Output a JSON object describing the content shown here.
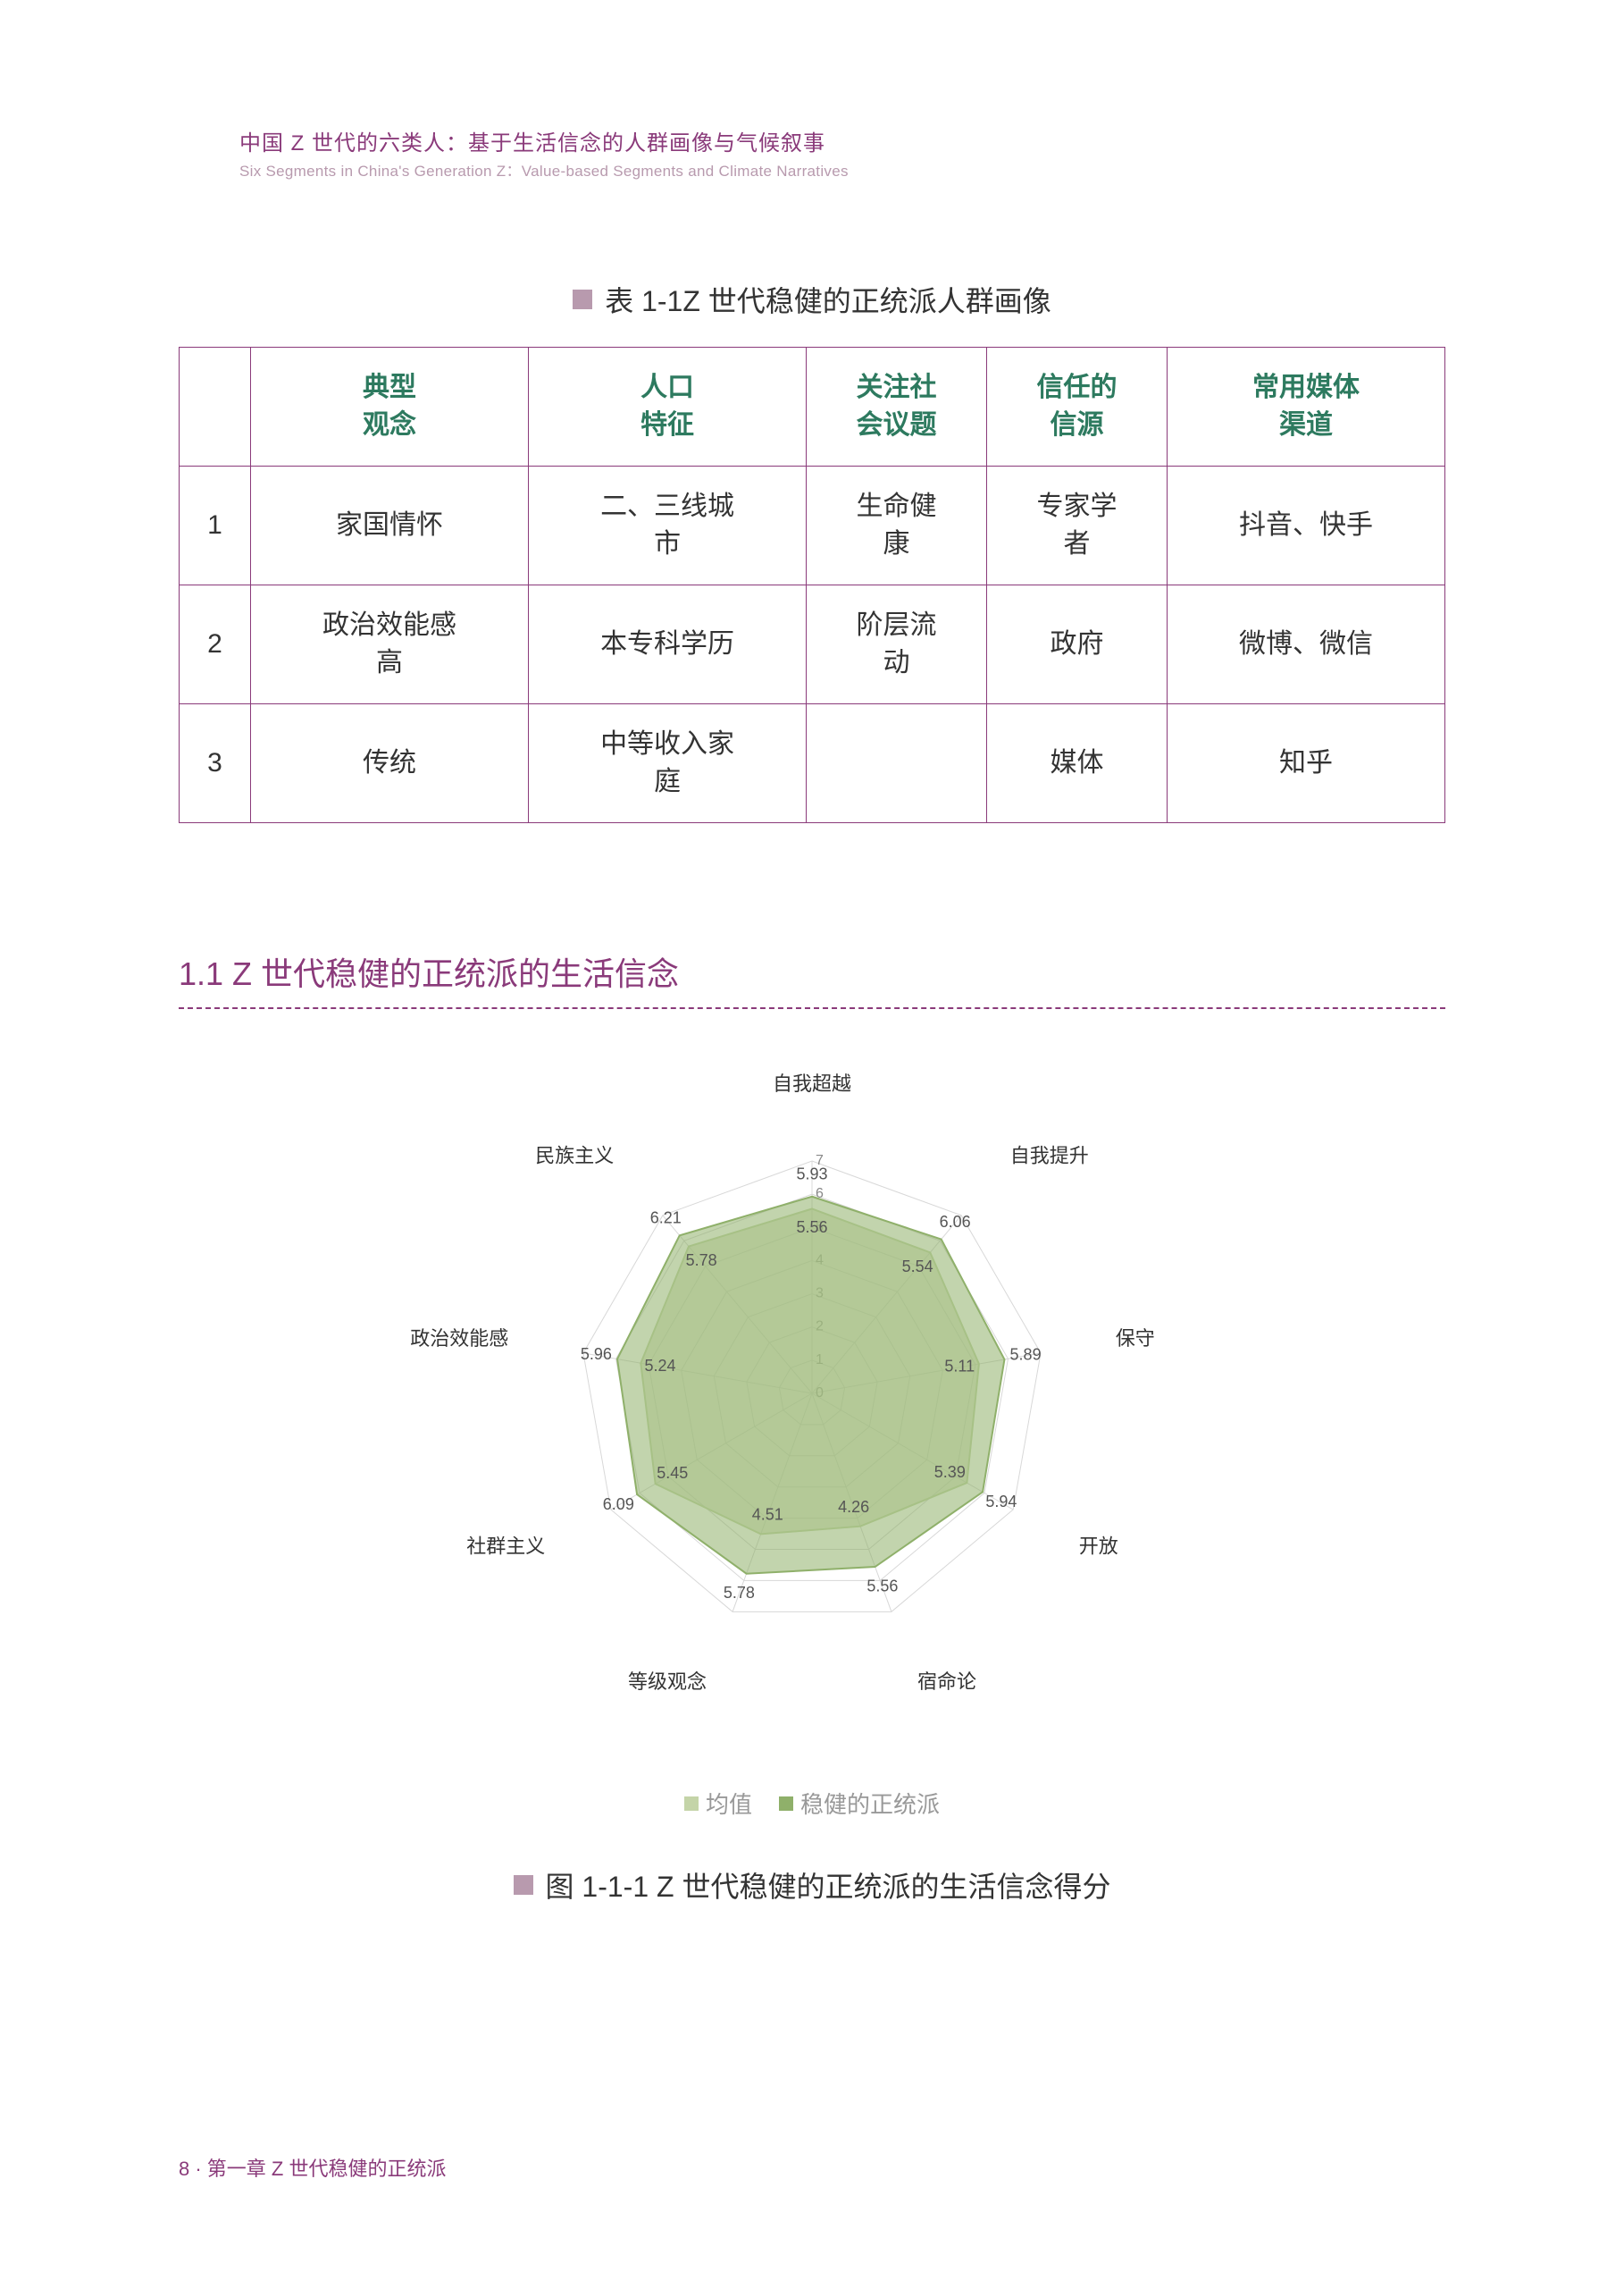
{
  "header": {
    "title_cn": "中国 Z 世代的六类人：基于生活信念的人群画像与气候叙事",
    "title_en": "Six Segments in China's Generation Z：Value-based Segments and Climate Narratives",
    "moon_colors": {
      "outer": "#c9b8c4",
      "inner": "#8a3a7a"
    }
  },
  "table": {
    "caption": "表 1-1Z 世代稳健的正统派人群画像",
    "caption_square_color": "#b89aae",
    "header_color": "#2d7a5f",
    "border_color": "#8a3a7a",
    "columns": [
      "",
      "典型\n观念",
      "人口\n特征",
      "关注社\n会议题",
      "信任的\n信源",
      "常用媒体\n渠道"
    ],
    "rows": [
      [
        "1",
        "家国情怀",
        "二、三线城\n市",
        "生命健\n康",
        "专家学\n者",
        "抖音、快手"
      ],
      [
        "2",
        "政治效能感\n高",
        "本专科学历",
        "阶层流\n动",
        "政府",
        "微博、微信"
      ],
      [
        "3",
        "传统",
        "中等收入家\n庭",
        "",
        "媒体",
        "知乎"
      ]
    ]
  },
  "section": {
    "heading": "1.1 Z 世代稳健的正统派的生活信念",
    "heading_color": "#8a3a7a"
  },
  "radar": {
    "type": "radar",
    "axes": [
      "自我超越",
      "自我提升",
      "保守",
      "开放",
      "宿命论",
      "等级观念",
      "社群主义",
      "政治效能感",
      "民族主义"
    ],
    "max": 7,
    "ticks": [
      0,
      1,
      2,
      3,
      4,
      5,
      6,
      7
    ],
    "series": [
      {
        "name": "均值",
        "color": "#c4d4a8",
        "fill": "#c4d4a8",
        "fill_opacity": 0.55,
        "values": [
          5.56,
          5.54,
          5.11,
          5.39,
          4.26,
          4.51,
          5.45,
          5.24,
          5.78
        ]
      },
      {
        "name": "稳健的正统派",
        "color": "#8fb06a",
        "fill": "#8fb06a",
        "fill_opacity": 0.55,
        "values": [
          5.93,
          6.06,
          5.89,
          5.94,
          5.56,
          5.78,
          6.09,
          5.96,
          6.21
        ]
      }
    ],
    "grid_color": "#d8d8d8",
    "background": "#ffffff",
    "axis_label_fontsize": 22,
    "value_label_fontsize": 18,
    "legend": {
      "mean_label": "均值",
      "series_label": "稳健的正统派",
      "mean_color": "#c4d4a8",
      "series_color": "#8fb06a"
    },
    "figure_caption": "图 1-1-1 Z 世代稳健的正统派的生活信念得分"
  },
  "footer": "8 · 第一章 Z 世代稳健的正统派"
}
